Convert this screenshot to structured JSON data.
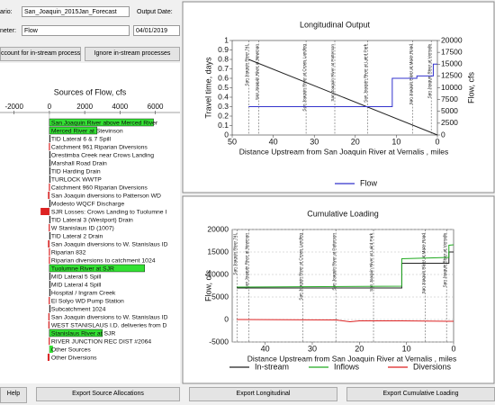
{
  "controls": {
    "scenario_label": "ario:",
    "scenario": "San_Joaquin_2015Jan_Forecast",
    "date_label": "Output Date:",
    "date": "04/01/2019",
    "parameter_label": "neter:",
    "parameter": "Flow",
    "option_account": "ccount for in-stream processes",
    "option_ignore": "Ignore in-stream processes"
  },
  "buttons": [
    "Help",
    "Export Source Allocations",
    "Export Longitudinal",
    "Export Cumulative Loading"
  ],
  "chart_data": [
    {
      "type": "hbar",
      "title": "Sources of Flow, cfs",
      "categories": [
        "San Joaquin River above Merced River",
        "Merced River at Stevinson",
        "TID Lateral 6 & 7 Spill",
        "Catchment 961 Riparian Diversions",
        "Orestimba Creek near Crows Landing",
        "Marshall Road Drain",
        "TID Harding Drain",
        "TURLOCK WWTP",
        "Catchment 960 Riparian Diversions",
        "San Joaquin diversions to Patterson WD",
        "Modesto WQCF Discharge",
        "SJR Losses: Crows Landing to Tuolumne I",
        "TID Lateral 3 (Westport) Drain",
        "W Stanislaus ID (1007)",
        "TID Lateral 2 Drain",
        "San Joaquin diversions to W. Stanislaus ID",
        "Riparian 832",
        "Riparian diversions to catchment 1024",
        "Tuolumne River at SJR",
        "MID Lateral 5 Spill",
        "MID Lateral 4 Spill",
        "Hospital / Ingram Creek",
        "El Solyo WD Pump Station",
        "Subcatchment 1024",
        "San Joaquin diversions to W. Stanislaus ID",
        "WEST STANISLAUS I.D. deliveries from D",
        "Stanislaus River at SJR",
        "RIVER JUNCTION REC DIST #2064",
        "Other Sources",
        "Other Diversions"
      ],
      "values": [
        5900,
        2700,
        30,
        -30,
        40,
        30,
        40,
        30,
        -30,
        -80,
        40,
        -500,
        30,
        -40,
        30,
        -80,
        -30,
        -30,
        5400,
        30,
        30,
        40,
        -40,
        30,
        -60,
        -60,
        3000,
        -40,
        200,
        -100
      ],
      "colors": [
        "#33e033",
        "#33e033",
        "#333333",
        "#dd2222",
        "#333333",
        "#333333",
        "#333333",
        "#333333",
        "#dd2222",
        "#dd2222",
        "#333333",
        "#dd2222",
        "#333333",
        "#dd2222",
        "#333333",
        "#dd2222",
        "#dd2222",
        "#dd2222",
        "#33e033",
        "#333333",
        "#333333",
        "#333333",
        "#dd2222",
        "#333333",
        "#dd2222",
        "#dd2222",
        "#33e033",
        "#dd2222",
        "#33e033",
        "#dd2222"
      ],
      "xlim": [
        -2800,
        7400
      ],
      "xticks": [
        -2000,
        0,
        2000,
        4000,
        6000
      ]
    },
    {
      "type": "line",
      "title": "Longitudinal Output",
      "xlabel": "Distance Upstream from San Joaquin River at Vernalis , miles",
      "ylabel": "Travel time, days",
      "y2label": "Flow, cfs",
      "xlim": [
        50,
        0
      ],
      "xticks": [
        50,
        40,
        30,
        20,
        10,
        0
      ],
      "ylim": [
        0,
        1
      ],
      "yticks": [
        0,
        0.1,
        0.2,
        0.3,
        0.4,
        0.5,
        0.6,
        0.7,
        0.8,
        0.9,
        1
      ],
      "y2lim": [
        0,
        20000
      ],
      "y2ticks": [
        0,
        2500,
        5000,
        7500,
        10000,
        12500,
        15000,
        17500,
        20000
      ],
      "stations": [
        {
          "label": "San Joaquin River 741",
          "x": 46
        },
        {
          "label": "San Joaquin River at Newman",
          "x": 43.5
        },
        {
          "label": "San Joaquin River at Crows Landing",
          "x": 32
        },
        {
          "label": "San Joaquin River at Patterson",
          "x": 25
        },
        {
          "label": "San Joaquin River at Laird Park",
          "x": 17
        },
        {
          "label": "San Joaquin River at Maze Road",
          "x": 6
        },
        {
          "label": "San Joaquin River at Vernalis",
          "x": 1.5
        }
      ],
      "series": [
        {
          "color": "#222222",
          "x": [
            46,
            0
          ],
          "values": [
            0.8,
            0
          ]
        },
        {
          "name": "Flow",
          "color": "#3333cc",
          "axis": "y2",
          "x": [
            46,
            11,
            11,
            5,
            5,
            1,
            1,
            0
          ],
          "values": [
            6000,
            6000,
            12000,
            12000,
            12500,
            12500,
            15000,
            15000
          ]
        }
      ]
    },
    {
      "type": "line",
      "title": "Cumulative Loading",
      "xlabel": "Distance Upstream from San Joaquin River at Vernalis , miles",
      "ylabel": "Flow, cfs",
      "xlim": [
        47,
        0
      ],
      "xticks": [
        40,
        30,
        20,
        10,
        0
      ],
      "ylim": [
        -5000,
        20000
      ],
      "yticks": [
        -5000,
        0,
        5000,
        10000,
        15000,
        20000
      ],
      "grid": true,
      "stations": [
        {
          "label": "San Joaquin River 741",
          "x": 46
        },
        {
          "label": "San Joaquin River at Newman",
          "x": 43.5
        },
        {
          "label": "San Joaquin River at Crows Landing",
          "x": 32
        },
        {
          "label": "San Joaquin River at Patterson",
          "x": 25
        },
        {
          "label": "San Joaquin River at Laird Park",
          "x": 17
        },
        {
          "label": "San Joaquin River at Maze Road",
          "x": 6
        },
        {
          "label": "San Joaquin River at Vernalis",
          "x": 1.5
        }
      ],
      "series": [
        {
          "name": "In-stream",
          "color": "#222222",
          "x": [
            46,
            11,
            11,
            1,
            1,
            0
          ],
          "values": [
            7000,
            7000,
            12500,
            12500,
            15000,
            15000
          ]
        },
        {
          "name": "Inflows",
          "color": "#22aa22",
          "x": [
            46,
            11,
            11,
            1,
            1,
            0
          ],
          "values": [
            7200,
            7400,
            13500,
            13800,
            16500,
            16600
          ]
        },
        {
          "name": "Diversions",
          "color": "#dd2222",
          "x": [
            46,
            25,
            22,
            20,
            11,
            1,
            0
          ],
          "values": [
            0,
            -100,
            -500,
            -300,
            -300,
            -400,
            -400
          ]
        }
      ]
    }
  ]
}
